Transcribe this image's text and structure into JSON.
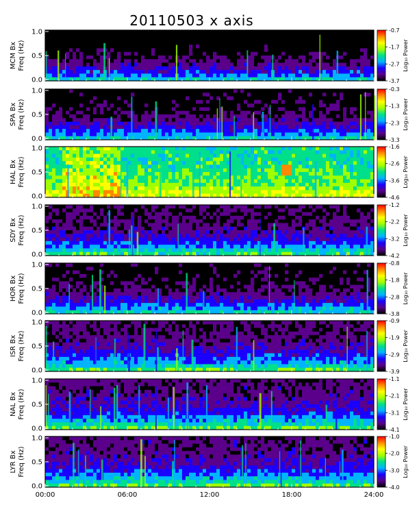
{
  "chart_data": {
    "type": "heatmap",
    "title": "20110503 x axis",
    "xlabel": "",
    "x_ticks": [
      "00:00",
      "06:00",
      "12:00",
      "18:00",
      "24:00"
    ],
    "x_range_hours": [
      0,
      24
    ],
    "y_range_hz": [
      0.0,
      1.0
    ],
    "y_ticks": [
      "0.0",
      "0.5",
      "1.0"
    ],
    "colorbar_label": "Log₁₀ Power",
    "colormap": [
      "#000000",
      "#5a008a",
      "#1a00ff",
      "#00b4ff",
      "#00e08a",
      "#a0ff00",
      "#ffff00",
      "#ff8a00",
      "#ff0000"
    ],
    "panels": [
      {
        "station": "MCM",
        "ylabel_top": "MCM Bx",
        "ylabel_bottom": "Freq (Hz)",
        "cbar_ticks": [
          "-0.7",
          "-1.7",
          "-2.7",
          "-3.7"
        ],
        "cbar_range": [
          -3.7,
          -0.7
        ]
      },
      {
        "station": "SPA",
        "ylabel_top": "SPA Bx",
        "ylabel_bottom": "Freq (Hz)",
        "cbar_ticks": [
          "-0.3",
          "-1.3",
          "-2.3",
          "-3.3"
        ],
        "cbar_range": [
          -3.3,
          -0.3
        ]
      },
      {
        "station": "HAL",
        "ylabel_top": "HAL Bx",
        "ylabel_bottom": "Freq (Hz)",
        "cbar_ticks": [
          "-1.6",
          "-2.6",
          "-3.6",
          "-4.6"
        ],
        "cbar_range": [
          -4.6,
          -1.6
        ]
      },
      {
        "station": "SDY",
        "ylabel_top": "SDY Bx",
        "ylabel_bottom": "Freq (Hz)",
        "cbar_ticks": [
          "-1.2",
          "-2.2",
          "-3.2",
          "-4.2"
        ],
        "cbar_range": [
          -4.2,
          -1.2
        ]
      },
      {
        "station": "HOR",
        "ylabel_top": "HOR Bx",
        "ylabel_bottom": "Freq (Hz)",
        "cbar_ticks": [
          "-0.8",
          "-1.8",
          "-2.8",
          "-3.8"
        ],
        "cbar_range": [
          -3.8,
          -0.8
        ]
      },
      {
        "station": "ISR",
        "ylabel_top": "ISR Bx",
        "ylabel_bottom": "Freq (Hz)",
        "cbar_ticks": [
          "-0.9",
          "-1.9",
          "-2.9",
          "-3.9"
        ],
        "cbar_range": [
          -3.9,
          -0.9
        ]
      },
      {
        "station": "NAL",
        "ylabel_top": "NAL Bx",
        "ylabel_bottom": "Freq (Hz)",
        "cbar_ticks": [
          "-1.1",
          "-2.1",
          "-3.1",
          "-4.1"
        ],
        "cbar_range": [
          -4.1,
          -1.1
        ]
      },
      {
        "station": "LYR",
        "ylabel_top": "LYR Bx",
        "ylabel_bottom": "Freq (Hz)",
        "cbar_ticks": [
          "-1.0",
          "-2.0",
          "-3.0",
          "-4.0"
        ],
        "cbar_range": [
          -4.0,
          -1.0
        ]
      }
    ]
  }
}
